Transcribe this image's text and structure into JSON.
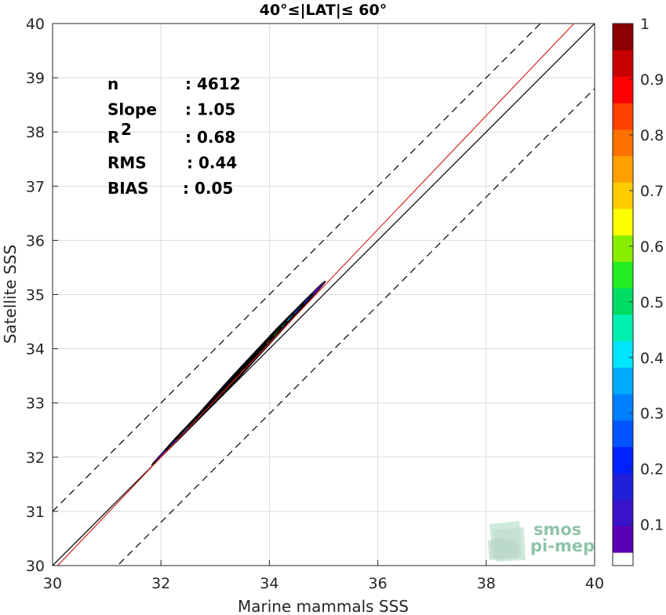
{
  "chart_data": {
    "type": "heatmap",
    "title": "40°≤|LAT|≤ 60°",
    "xlabel": "Marine mammals SSS",
    "ylabel": "Satellite SSS",
    "xlim": [
      30,
      40
    ],
    "ylim": [
      30,
      40
    ],
    "xticks": [
      "30",
      "32",
      "34",
      "36",
      "38",
      "40"
    ],
    "yticks": [
      "30",
      "31",
      "32",
      "33",
      "34",
      "35",
      "36",
      "37",
      "38",
      "39",
      "40"
    ],
    "grid": true,
    "stats": [
      {
        "key": "n",
        "value": ": 4612"
      },
      {
        "key": "Slope",
        "value": ": 1.05"
      },
      {
        "key": "R",
        "sup": "2",
        "value": ": 0.68"
      },
      {
        "key": "RMS",
        "value": ": 0.44"
      },
      {
        "key": "BIAS",
        "value": ": 0.05"
      }
    ],
    "lines": {
      "identity": {
        "slope": 1,
        "intercept": 0,
        "color": "#000000",
        "style": "solid"
      },
      "regression": {
        "slope": 1.05,
        "intercept": -1.6,
        "color": "#d62728",
        "style": "solid"
      },
      "upper_bound": {
        "slope": 1,
        "intercept": 1,
        "color": "#000000",
        "style": "dashed"
      },
      "lower_bound": {
        "slope": 1,
        "intercept": -1.2,
        "color": "#000000",
        "style": "dashed"
      }
    },
    "density": {
      "ridge": [
        [
          32.5,
          32.55
        ],
        [
          33.0,
          33.05
        ],
        [
          33.5,
          33.6
        ],
        [
          34.0,
          34.15
        ],
        [
          34.4,
          34.6
        ]
      ],
      "peak_at": 33.55,
      "levels": [
        {
          "level": 0.05,
          "half_width": 0.55,
          "half_length": 1.7
        },
        {
          "level": 0.15,
          "half_width": 0.42,
          "half_length": 1.45
        },
        {
          "level": 0.25,
          "half_width": 0.34,
          "half_length": 1.25
        },
        {
          "level": 0.35,
          "half_width": 0.28,
          "half_length": 1.05
        },
        {
          "level": 0.45,
          "half_width": 0.23,
          "half_length": 0.9
        },
        {
          "level": 0.55,
          "half_width": 0.19,
          "half_length": 0.78
        },
        {
          "level": 0.65,
          "half_width": 0.15,
          "half_length": 0.62
        },
        {
          "level": 0.75,
          "half_width": 0.11,
          "half_length": 0.46
        },
        {
          "level": 0.85,
          "half_width": 0.07,
          "half_length": 0.28
        }
      ]
    },
    "colorbar": {
      "ticks": [
        "0.1",
        "0.2",
        "0.3",
        "0.4",
        "0.5",
        "0.6",
        "0.7",
        "0.8",
        "0.9",
        "1"
      ],
      "levels": 20,
      "colors": [
        "#ffffff",
        "#5c00b5",
        "#3a12c8",
        "#2020d8",
        "#0022ff",
        "#0055ff",
        "#0080ff",
        "#00aaff",
        "#00e6ff",
        "#00f0b0",
        "#00dd66",
        "#22ee22",
        "#88ee00",
        "#ffff00",
        "#ffcc00",
        "#ffa000",
        "#ff7000",
        "#ff4000",
        "#ff0000",
        "#c80000",
        "#8b0000"
      ]
    }
  },
  "logo": {
    "line1": "smos",
    "line2": "pi-mep"
  }
}
